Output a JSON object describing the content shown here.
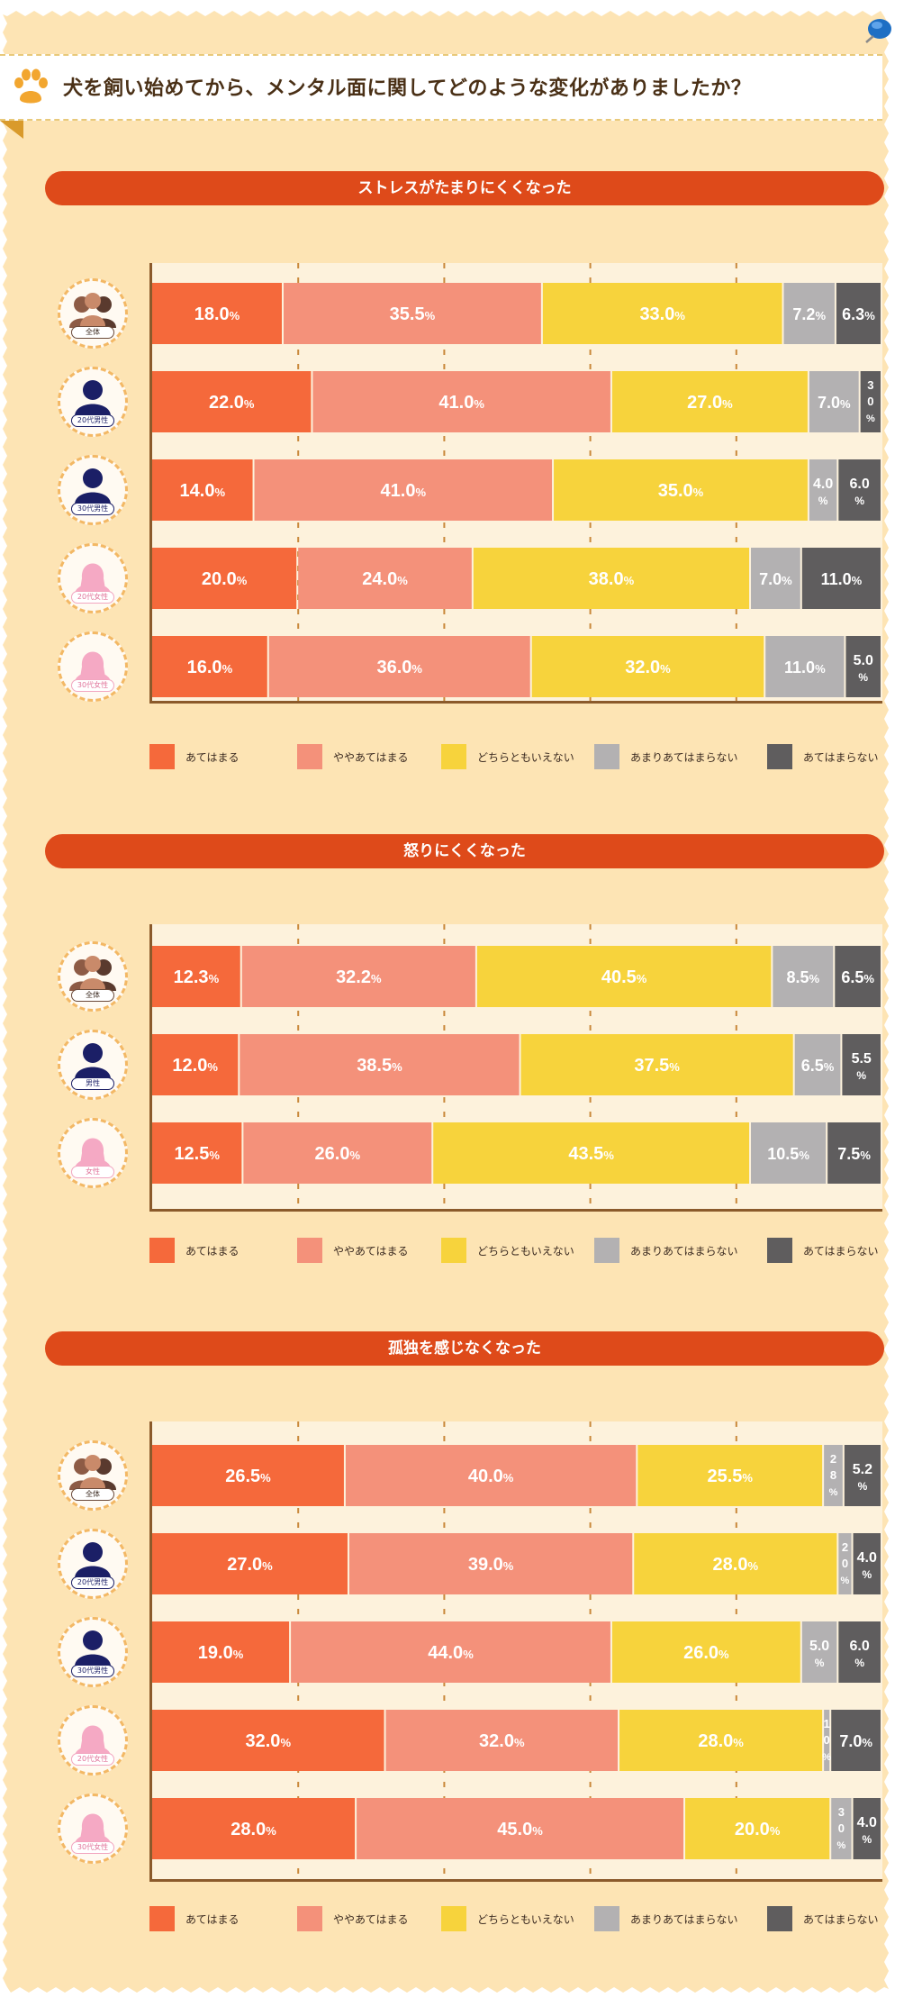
{
  "question": "犬を飼い始めてから、メンタル面に関してどのような変化がありましたか？",
  "icons": {
    "question": "paw-icon",
    "pin": "pushpin-icon"
  },
  "colors": {
    "paper": "#fde4b4",
    "header": "#de4a1a",
    "apply": "#f5693b",
    "somewhat_apply": "#f4917a",
    "neither": "#f7d33c",
    "not_much": "#b3b1b2",
    "not_apply": "#5f5d5e",
    "male": "#1b1f66",
    "female": "#f5a9c4",
    "all": "#7a5444"
  },
  "legend": {
    "items": [
      {
        "label": "あてはまる",
        "color": "#f5693b"
      },
      {
        "label": "ややあてはまる",
        "color": "#f4917a"
      },
      {
        "label": "どちらともいえない",
        "color": "#f7d33c"
      },
      {
        "label": "あまりあてはまらない",
        "color": "#b3b1b2"
      },
      {
        "label": "あてはまらない",
        "color": "#5f5d5e"
      }
    ]
  },
  "chart_data": [
    {
      "type": "bar",
      "orientation": "horizontal-stacked",
      "title": "ストレスがたまりにくくなった",
      "unit": "%",
      "categories": [
        {
          "label": "全体",
          "icon": "group-icon",
          "kind": "all"
        },
        {
          "label": "20代男性",
          "icon": "male-silhouette-icon",
          "kind": "male"
        },
        {
          "label": "30代男性",
          "icon": "male-silhouette-icon",
          "kind": "male"
        },
        {
          "label": "20代女性",
          "icon": "female-silhouette-icon",
          "kind": "female"
        },
        {
          "label": "30代女性",
          "icon": "female-silhouette-icon",
          "kind": "female"
        }
      ],
      "series": [
        {
          "name": "あてはまる",
          "values": [
            18.0,
            22.0,
            14.0,
            20.0,
            16.0
          ]
        },
        {
          "name": "ややあてはまる",
          "values": [
            35.5,
            41.0,
            41.0,
            24.0,
            36.0
          ]
        },
        {
          "name": "どちらともいえない",
          "values": [
            33.0,
            27.0,
            35.0,
            38.0,
            32.0
          ]
        },
        {
          "name": "あまりあてはまらない",
          "values": [
            7.2,
            7.0,
            4.0,
            7.0,
            11.0
          ]
        },
        {
          "name": "あてはまらない",
          "values": [
            6.3,
            3.0,
            6.0,
            11.0,
            5.0
          ]
        }
      ],
      "xlim": [
        0,
        100
      ],
      "legend_position": "bottom"
    },
    {
      "type": "bar",
      "orientation": "horizontal-stacked",
      "title": "怒りにくくなった",
      "unit": "%",
      "categories": [
        {
          "label": "全体",
          "icon": "group-icon",
          "kind": "all"
        },
        {
          "label": "男性",
          "icon": "male-silhouette-icon",
          "kind": "male"
        },
        {
          "label": "女性",
          "icon": "female-silhouette-icon",
          "kind": "female"
        }
      ],
      "series": [
        {
          "name": "あてはまる",
          "values": [
            12.3,
            12.0,
            12.5
          ]
        },
        {
          "name": "ややあてはまる",
          "values": [
            32.2,
            38.5,
            26.0
          ]
        },
        {
          "name": "どちらともいえない",
          "values": [
            40.5,
            37.5,
            43.5
          ]
        },
        {
          "name": "あまりあてはまらない",
          "values": [
            8.5,
            6.5,
            10.5
          ]
        },
        {
          "name": "あてはまらない",
          "values": [
            6.5,
            5.5,
            7.5
          ]
        }
      ],
      "xlim": [
        0,
        100
      ],
      "legend_position": "bottom"
    },
    {
      "type": "bar",
      "orientation": "horizontal-stacked",
      "title": "孤独を感じなくなった",
      "unit": "%",
      "categories": [
        {
          "label": "全体",
          "icon": "group-icon",
          "kind": "all"
        },
        {
          "label": "20代男性",
          "icon": "male-silhouette-icon",
          "kind": "male"
        },
        {
          "label": "30代男性",
          "icon": "male-silhouette-icon",
          "kind": "male"
        },
        {
          "label": "20代女性",
          "icon": "female-silhouette-icon",
          "kind": "female"
        },
        {
          "label": "30代女性",
          "icon": "female-silhouette-icon",
          "kind": "female"
        }
      ],
      "series": [
        {
          "name": "あてはまる",
          "values": [
            26.5,
            27.0,
            19.0,
            32.0,
            28.0
          ]
        },
        {
          "name": "ややあてはまる",
          "values": [
            40.0,
            39.0,
            44.0,
            32.0,
            45.0
          ]
        },
        {
          "name": "どちらともいえない",
          "values": [
            25.5,
            28.0,
            26.0,
            28.0,
            20.0
          ]
        },
        {
          "name": "あまりあてはまらない",
          "values": [
            2.8,
            2.0,
            5.0,
            1.0,
            3.0
          ]
        },
        {
          "name": "あてはまらない",
          "values": [
            5.2,
            4.0,
            6.0,
            7.0,
            4.0
          ]
        }
      ],
      "xlim": [
        0,
        100
      ],
      "legend_position": "bottom"
    }
  ]
}
